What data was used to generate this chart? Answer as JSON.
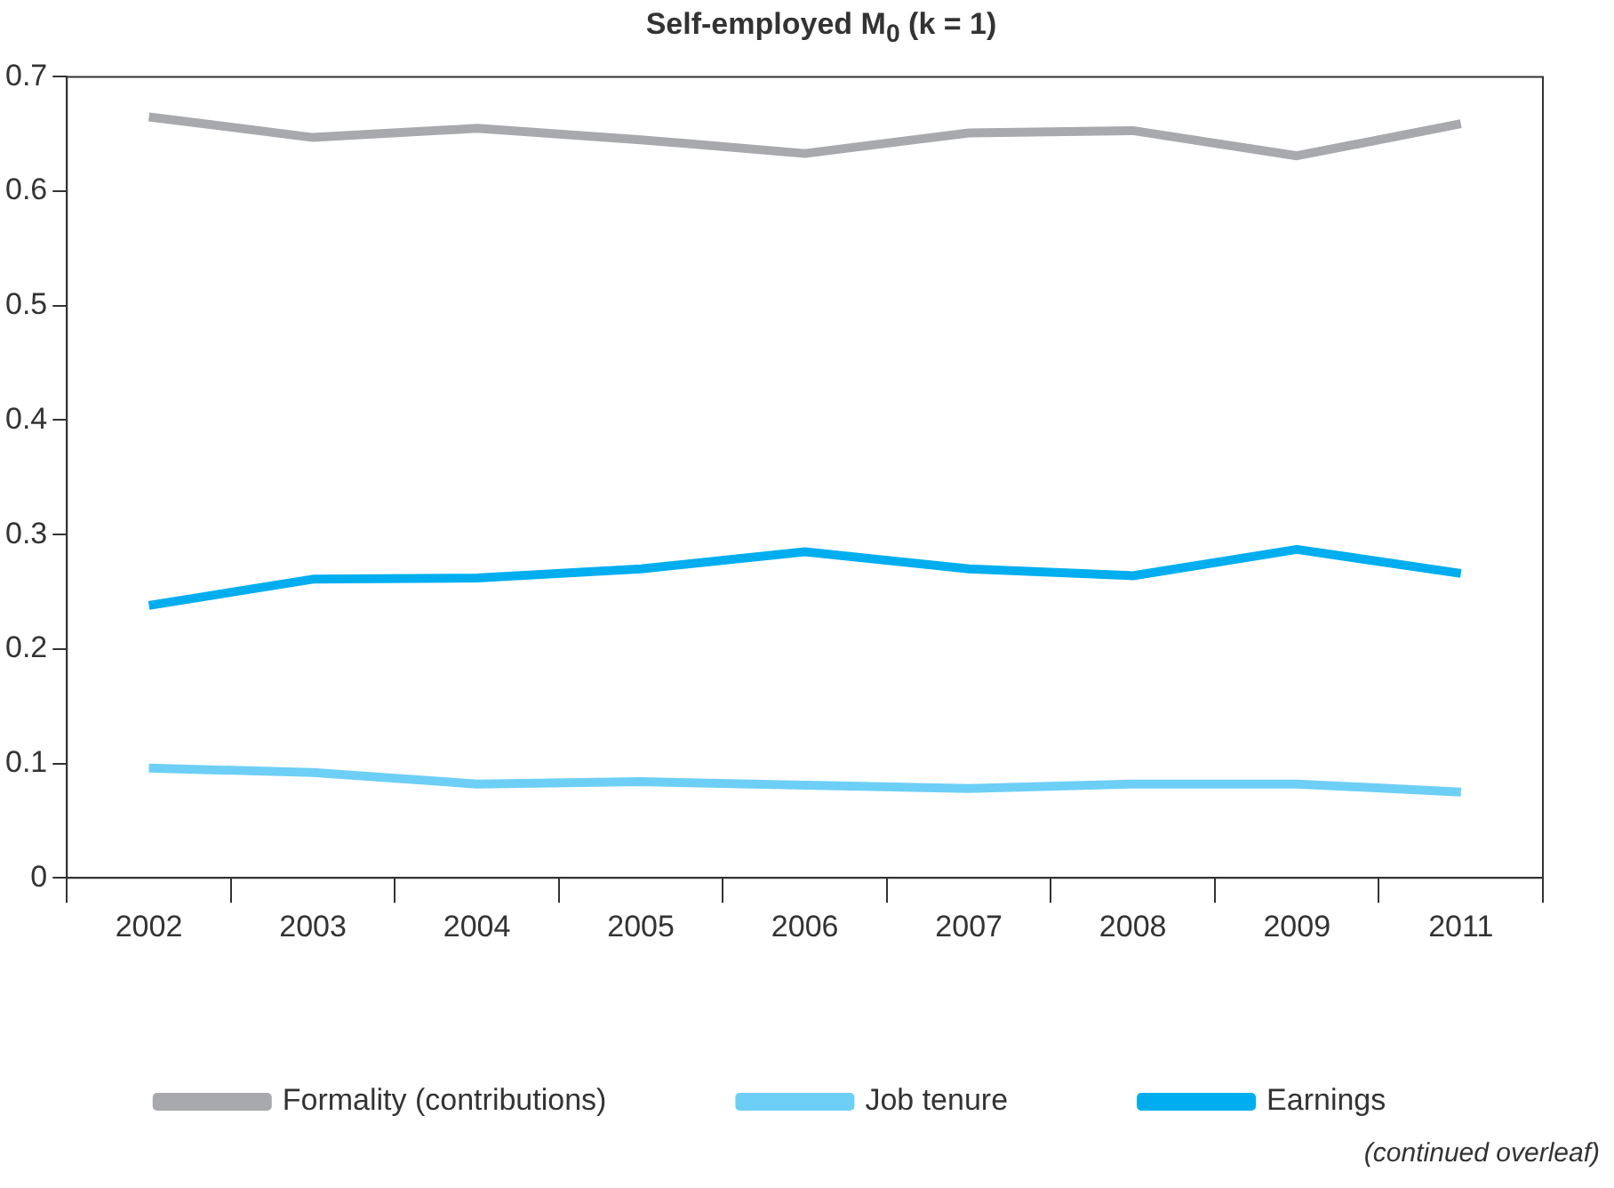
{
  "chart_data": {
    "type": "line",
    "title": "Self-employed M$_{0}$ (k = 1)",
    "categories": [
      "2002",
      "2003",
      "2004",
      "2005",
      "2006",
      "2007",
      "2008",
      "2009",
      "2011"
    ],
    "series": [
      {
        "name": "Formality (contributions)",
        "color": "#a7a9ac",
        "values": [
          0.665,
          0.647,
          0.655,
          0.645,
          0.633,
          0.651,
          0.653,
          0.631,
          0.659
        ]
      },
      {
        "name": "Job tenure",
        "color": "#6dcff6",
        "values": [
          0.096,
          0.092,
          0.082,
          0.084,
          0.081,
          0.078,
          0.082,
          0.082,
          0.075
        ]
      },
      {
        "name": "Earnings",
        "color": "#00aeef",
        "values": [
          0.238,
          0.261,
          0.262,
          0.27,
          0.285,
          0.27,
          0.264,
          0.287,
          0.266
        ]
      }
    ],
    "ylim": [
      0,
      0.7
    ],
    "yticks": [
      0,
      0.1,
      0.2,
      0.3,
      0.4,
      0.5,
      0.6,
      0.7
    ],
    "grid": false,
    "legend": "bottom",
    "marker": "none",
    "line_style": "solid",
    "annotations": [
      "(continued overleaf)"
    ]
  }
}
